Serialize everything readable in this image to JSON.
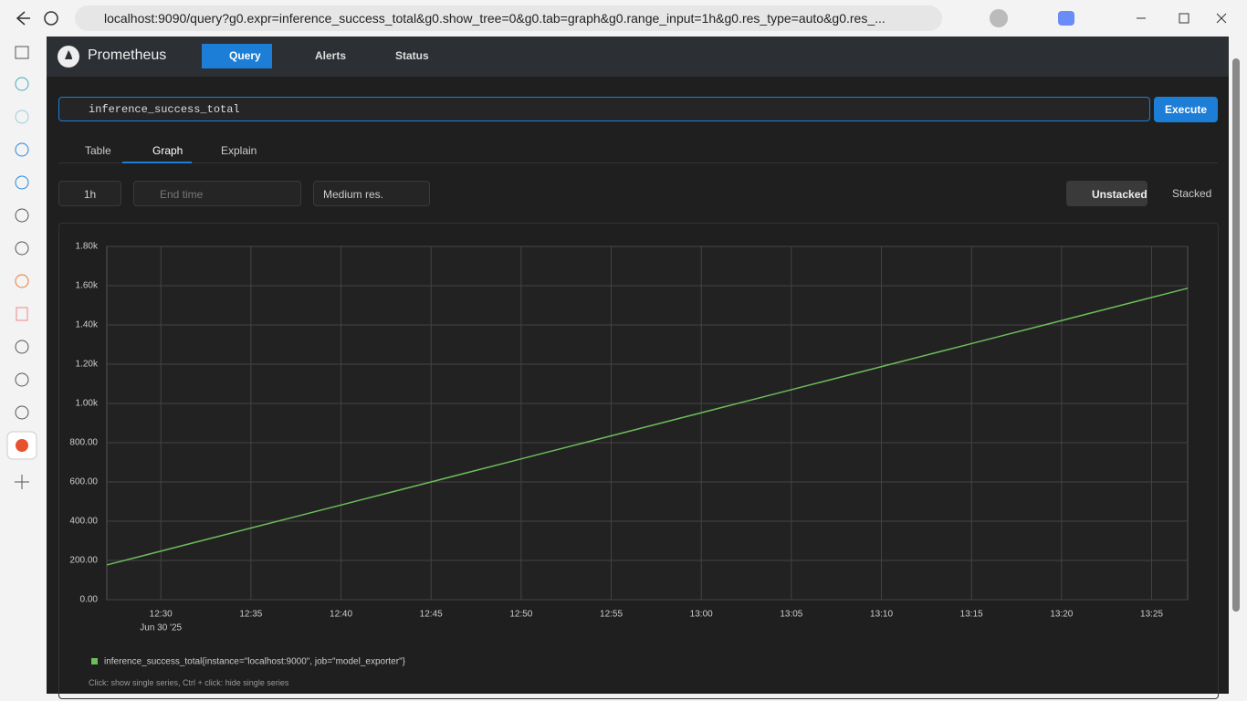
{
  "browser": {
    "url": "localhost:9090/query?g0.expr=inference_success_total&g0.show_tree=0&g0.tab=graph&g0.range_input=1h&g0.res_type=auto&g0.res_..."
  },
  "app": {
    "brand": "Prometheus",
    "nav": [
      "Query",
      "Alerts",
      "Status"
    ],
    "query": "inference_success_total",
    "execute": "Execute",
    "tabs": [
      "Table",
      "Graph",
      "Explain"
    ],
    "range": "1h",
    "end_time": "End time",
    "resolution": "Medium res.",
    "stack_modes": [
      "Unstacked",
      "Stacked"
    ],
    "hint": "Click: show single series, Ctrl + click: hide single series"
  },
  "chart_data": {
    "type": "line",
    "x": [
      "12:27",
      "12:29",
      "12:31",
      "12:33",
      "12:35",
      "12:37",
      "12:39",
      "12:41",
      "12:43",
      "12:45",
      "12:47",
      "12:49",
      "12:51",
      "12:53",
      "12:55",
      "12:57",
      "12:59",
      "13:01",
      "13:03",
      "13:05",
      "13:07",
      "13:09",
      "13:11",
      "13:13",
      "13:15",
      "13:17",
      "13:19",
      "13:21",
      "13:23",
      "13:25",
      "13:27"
    ],
    "series": [
      {
        "name": "inference_success_total{instance=\"localhost:9000\", job=\"model_exporter\"}",
        "color": "#6cbd5b",
        "values": [
          177,
          224,
          271,
          318,
          365,
          412,
          459,
          506,
          553,
          600,
          647,
          694,
          741,
          788,
          835,
          882,
          929,
          976,
          1023,
          1070,
          1117,
          1164,
          1211,
          1258,
          1305,
          1352,
          1399,
          1446,
          1493,
          1540,
          1587
        ]
      }
    ],
    "xlim": [
      "12:27",
      "13:27"
    ],
    "xticks": [
      "12:30",
      "12:35",
      "12:40",
      "12:45",
      "12:50",
      "12:55",
      "13:00",
      "13:05",
      "13:10",
      "13:15",
      "13:20",
      "13:25"
    ],
    "x_date_label": "Jun 30 '25",
    "ylim": [
      0,
      1800
    ],
    "yticks": [
      {
        "value": 0,
        "label": "0.00"
      },
      {
        "value": 200,
        "label": "200.00"
      },
      {
        "value": 400,
        "label": "400.00"
      },
      {
        "value": 600,
        "label": "600.00"
      },
      {
        "value": 800,
        "label": "800.00"
      },
      {
        "value": 1000,
        "label": "1.00k"
      },
      {
        "value": 1200,
        "label": "1.20k"
      },
      {
        "value": 1400,
        "label": "1.40k"
      },
      {
        "value": 1600,
        "label": "1.60k"
      },
      {
        "value": 1800,
        "label": "1.80k"
      }
    ],
    "grid": true
  }
}
